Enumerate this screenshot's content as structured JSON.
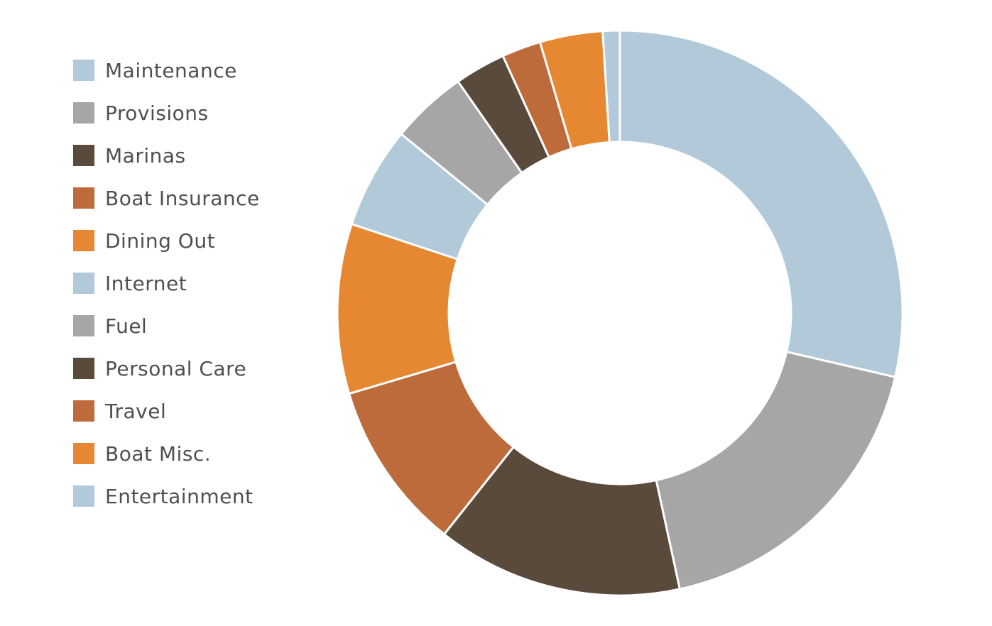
{
  "chart_data": {
    "type": "pie",
    "variant": "donut",
    "title": "",
    "legend": "left",
    "categories": [
      "Maintenance",
      "Provisions",
      "Marinas",
      "Boat Insurance",
      "Dining Out",
      "Internet",
      "Fuel",
      "Personal Care",
      "Travel",
      "Boat Misc.",
      "Entertainment"
    ],
    "values": [
      29.5,
      18.5,
      14.5,
      10,
      10,
      6,
      4.5,
      3,
      2.3,
      3.7,
      1
    ],
    "colors": [
      "#b1c9d8",
      "#a6a6a6",
      "#5a4a3c",
      "#be6b3b",
      "#e68832",
      "#b1c9d8",
      "#a6a6a6",
      "#5a4a3c",
      "#be6b3b",
      "#e68832",
      "#b1c9d8"
    ]
  }
}
